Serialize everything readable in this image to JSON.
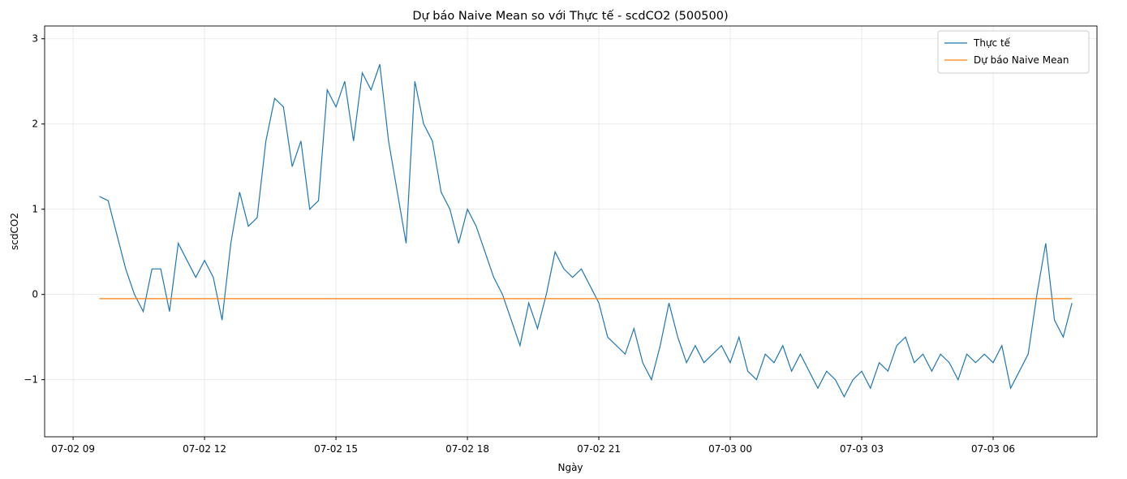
{
  "chart_data": {
    "type": "line",
    "title": "Dự báo Naive Mean so với Thực tế - scdCO2 (500500)",
    "xlabel": "Ngày",
    "ylabel": "scdCO2",
    "x": [
      9.6,
      9.8,
      10.0,
      10.2,
      10.4,
      10.6,
      10.8,
      11.0,
      11.2,
      11.4,
      11.6,
      11.8,
      12.0,
      12.2,
      12.4,
      12.6,
      12.8,
      13.0,
      13.2,
      13.4,
      13.6,
      13.8,
      14.0,
      14.2,
      14.4,
      14.6,
      14.8,
      15.0,
      15.2,
      15.4,
      15.6,
      15.8,
      16.0,
      16.2,
      16.4,
      16.6,
      16.8,
      17.0,
      17.2,
      17.4,
      17.6,
      17.8,
      18.0,
      18.2,
      18.4,
      18.6,
      18.8,
      19.0,
      19.2,
      19.4,
      19.6,
      19.8,
      20.0,
      20.2,
      20.4,
      20.6,
      20.8,
      21.0,
      21.2,
      21.4,
      21.6,
      21.8,
      22.0,
      22.2,
      22.4,
      22.6,
      22.8,
      23.0,
      23.2,
      23.4,
      23.6,
      23.8,
      24.0,
      24.2,
      24.4,
      24.6,
      24.8,
      25.0,
      25.2,
      25.4,
      25.6,
      25.8,
      26.0,
      26.2,
      26.4,
      26.6,
      26.8,
      27.0,
      27.2,
      27.4,
      27.6,
      27.8,
      28.0,
      28.2,
      28.4,
      28.6,
      28.8,
      29.0,
      29.2,
      29.4,
      29.6,
      29.8,
      30.0,
      30.2,
      30.4,
      30.6,
      30.8,
      31.0,
      31.2,
      31.4,
      31.6,
      31.8
    ],
    "series": [
      {
        "name": "Thực tế",
        "color": "#1f77b4",
        "values": [
          1.15,
          1.1,
          0.7,
          0.3,
          0.0,
          -0.2,
          0.3,
          0.3,
          -0.2,
          0.6,
          0.4,
          0.2,
          0.4,
          0.2,
          -0.3,
          0.6,
          1.2,
          0.8,
          0.9,
          1.8,
          2.3,
          2.2,
          1.5,
          1.8,
          1.0,
          1.1,
          2.4,
          2.2,
          2.5,
          1.8,
          2.6,
          2.4,
          2.7,
          1.8,
          1.2,
          0.6,
          2.5,
          2.0,
          1.8,
          1.2,
          1.0,
          0.6,
          1.0,
          0.8,
          0.5,
          0.2,
          0.0,
          -0.3,
          -0.6,
          -0.1,
          -0.4,
          0.0,
          0.5,
          0.3,
          0.2,
          0.3,
          0.1,
          -0.1,
          -0.5,
          -0.6,
          -0.7,
          -0.4,
          -0.8,
          -1.0,
          -0.6,
          -0.1,
          -0.5,
          -0.8,
          -0.6,
          -0.8,
          -0.7,
          -0.6,
          -0.8,
          -0.5,
          -0.9,
          -1.0,
          -0.7,
          -0.8,
          -0.6,
          -0.9,
          -0.7,
          -0.9,
          -1.1,
          -0.9,
          -1.0,
          -1.2,
          -1.0,
          -0.9,
          -1.1,
          -0.8,
          -0.9,
          -0.6,
          -0.5,
          -0.8,
          -0.7,
          -0.9,
          -0.7,
          -0.8,
          -1.0,
          -0.7,
          -0.8,
          -0.7,
          -0.8,
          -0.6,
          -1.1,
          -0.9,
          -0.7,
          0.0,
          0.6,
          -0.3,
          -0.5,
          -0.1
        ]
      },
      {
        "name": "Dự báo Naive Mean",
        "color": "#ff7f0e",
        "x": [
          9.6,
          31.8
        ],
        "values": [
          -0.05,
          -0.05
        ]
      }
    ],
    "xlim": [
      8.35,
      32.37
    ],
    "xticks": [
      {
        "value": 9,
        "label": "07-02 09"
      },
      {
        "value": 12,
        "label": "07-02 12"
      },
      {
        "value": 15,
        "label": "07-02 15"
      },
      {
        "value": 18,
        "label": "07-02 18"
      },
      {
        "value": 21,
        "label": "07-02 21"
      },
      {
        "value": 24,
        "label": "07-03 00"
      },
      {
        "value": 27,
        "label": "07-03 03"
      },
      {
        "value": 30,
        "label": "07-03 06"
      }
    ],
    "ylim": [
      -1.67,
      3.15
    ],
    "yticks": [
      {
        "value": -1,
        "label": "−1"
      },
      0,
      1,
      2,
      3
    ],
    "grid": true,
    "legend": "upper-right"
  }
}
